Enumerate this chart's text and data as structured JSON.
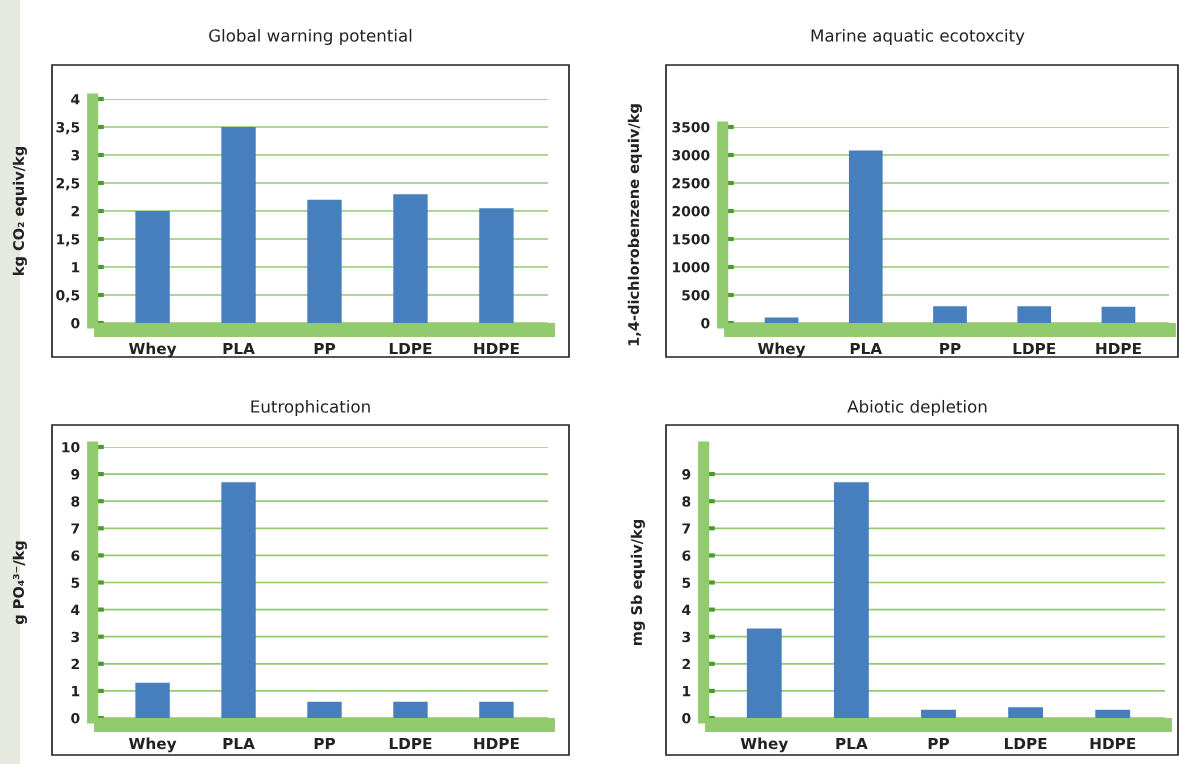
{
  "chart_data": [
    {
      "type": "bar",
      "title": "Global warning potential",
      "ylabel": "kg CO₂ equiv/kg",
      "categories": [
        "Whey",
        "PLA",
        "PP",
        "LDPE",
        "HDPE"
      ],
      "values": [
        2.0,
        3.5,
        2.2,
        2.3,
        2.05
      ],
      "color": "#467ebe",
      "ylim": [
        0,
        4
      ],
      "yticks": [
        0,
        {
          "value": 0.5,
          "label": "0,5"
        },
        1,
        {
          "value": 1.5,
          "label": "1,5"
        },
        2,
        {
          "value": 2.5,
          "label": "2,5"
        },
        3,
        {
          "value": 3.5,
          "label": "3,5"
        },
        4
      ],
      "grid": "y"
    },
    {
      "type": "bar",
      "title": "Marine aquatic ecotoxcity",
      "ylabel": "1,4-dichlorobenzene equiv/kg",
      "categories": [
        "Whey",
        "PLA",
        "PP",
        "LDPE",
        "HDPE"
      ],
      "values": [
        100,
        3080,
        300,
        300,
        290
      ],
      "color": "#467ebe",
      "ylim": [
        0,
        3500
      ],
      "yticks": [
        0,
        500,
        1000,
        1500,
        2000,
        2500,
        3000,
        3500
      ],
      "grid": "y"
    },
    {
      "type": "bar",
      "title": "Eutrophication",
      "ylabel": "g PO₄³⁻/kg",
      "categories": [
        "Whey",
        "PLA",
        "PP",
        "LDPE",
        "HDPE"
      ],
      "values": [
        1.3,
        8.7,
        0.6,
        0.6,
        0.6
      ],
      "color": "#467ebe",
      "ylim": [
        0,
        10
      ],
      "yticks": [
        0,
        1,
        2,
        3,
        4,
        5,
        6,
        7,
        8,
        9,
        10
      ],
      "grid": "y"
    },
    {
      "type": "bar",
      "title": "Abiotic depletion",
      "ylabel": "mg Sb equiv/kg",
      "categories": [
        "Whey",
        "PLA",
        "PP",
        "LDPE",
        "HDPE"
      ],
      "values": [
        3.3,
        8.7,
        0.3,
        0.4,
        0.3
      ],
      "color": "#467ebe",
      "ylim": [
        0,
        10
      ],
      "yticks": [
        0,
        1,
        2,
        3,
        4,
        5,
        6,
        7,
        8,
        9
      ],
      "grid": "y"
    }
  ]
}
